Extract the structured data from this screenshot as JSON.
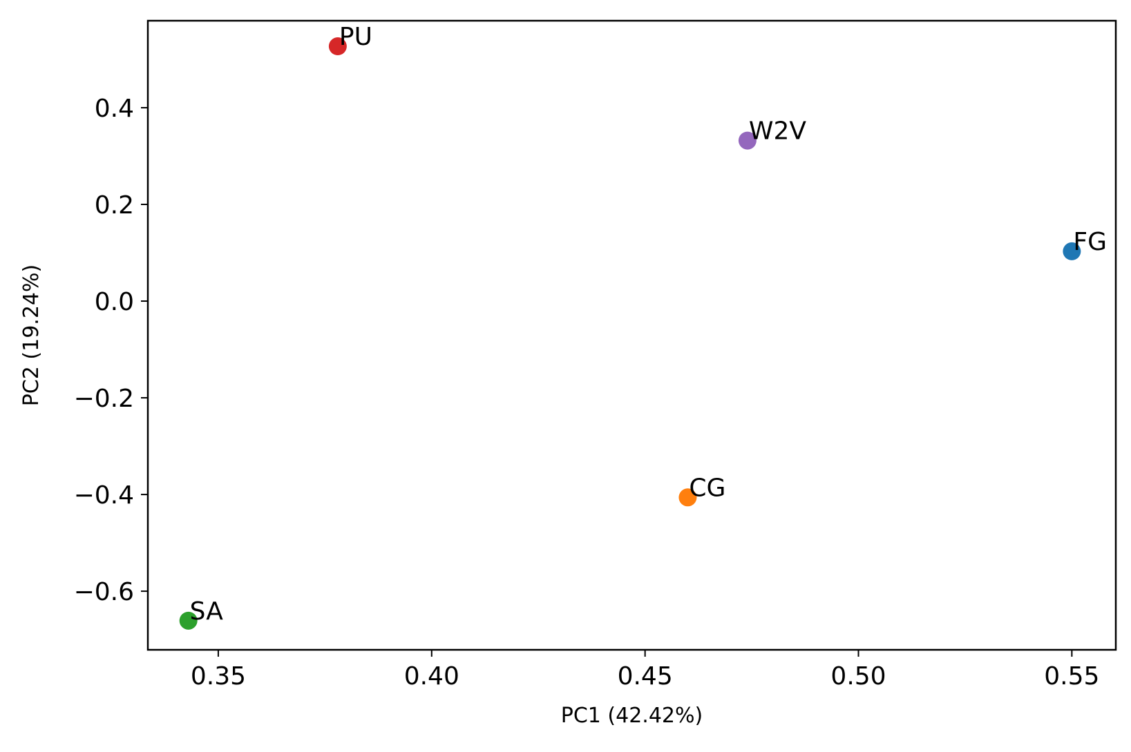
{
  "chart_data": {
    "type": "scatter",
    "title": "",
    "xlabel": "PC1 (42.42%)",
    "ylabel": "PC2 (19.24%)",
    "xlim": [
      0.3335,
      0.5603
    ],
    "ylim": [
      -0.7212,
      0.5799
    ],
    "xticks": [
      0.35,
      0.4,
      0.45,
      0.5,
      0.55
    ],
    "xtick_labels": [
      "0.35",
      "0.40",
      "0.45",
      "0.50",
      "0.55"
    ],
    "yticks": [
      -0.6,
      -0.4,
      -0.2,
      0.0,
      0.2,
      0.4
    ],
    "ytick_labels": [
      "−0.6",
      "−0.4",
      "−0.2",
      "0.0",
      "0.2",
      "0.4"
    ],
    "grid": false,
    "points": [
      {
        "label": "FG",
        "x": 0.55,
        "y": 0.103,
        "color": "#1f77b4"
      },
      {
        "label": "CG",
        "x": 0.46,
        "y": -0.406,
        "color": "#ff7f0e"
      },
      {
        "label": "SA",
        "x": 0.343,
        "y": -0.661,
        "color": "#2ca02c"
      },
      {
        "label": "PU",
        "x": 0.378,
        "y": 0.527,
        "color": "#d62728"
      },
      {
        "label": "W2V",
        "x": 0.474,
        "y": 0.332,
        "color": "#9467bd"
      }
    ]
  }
}
